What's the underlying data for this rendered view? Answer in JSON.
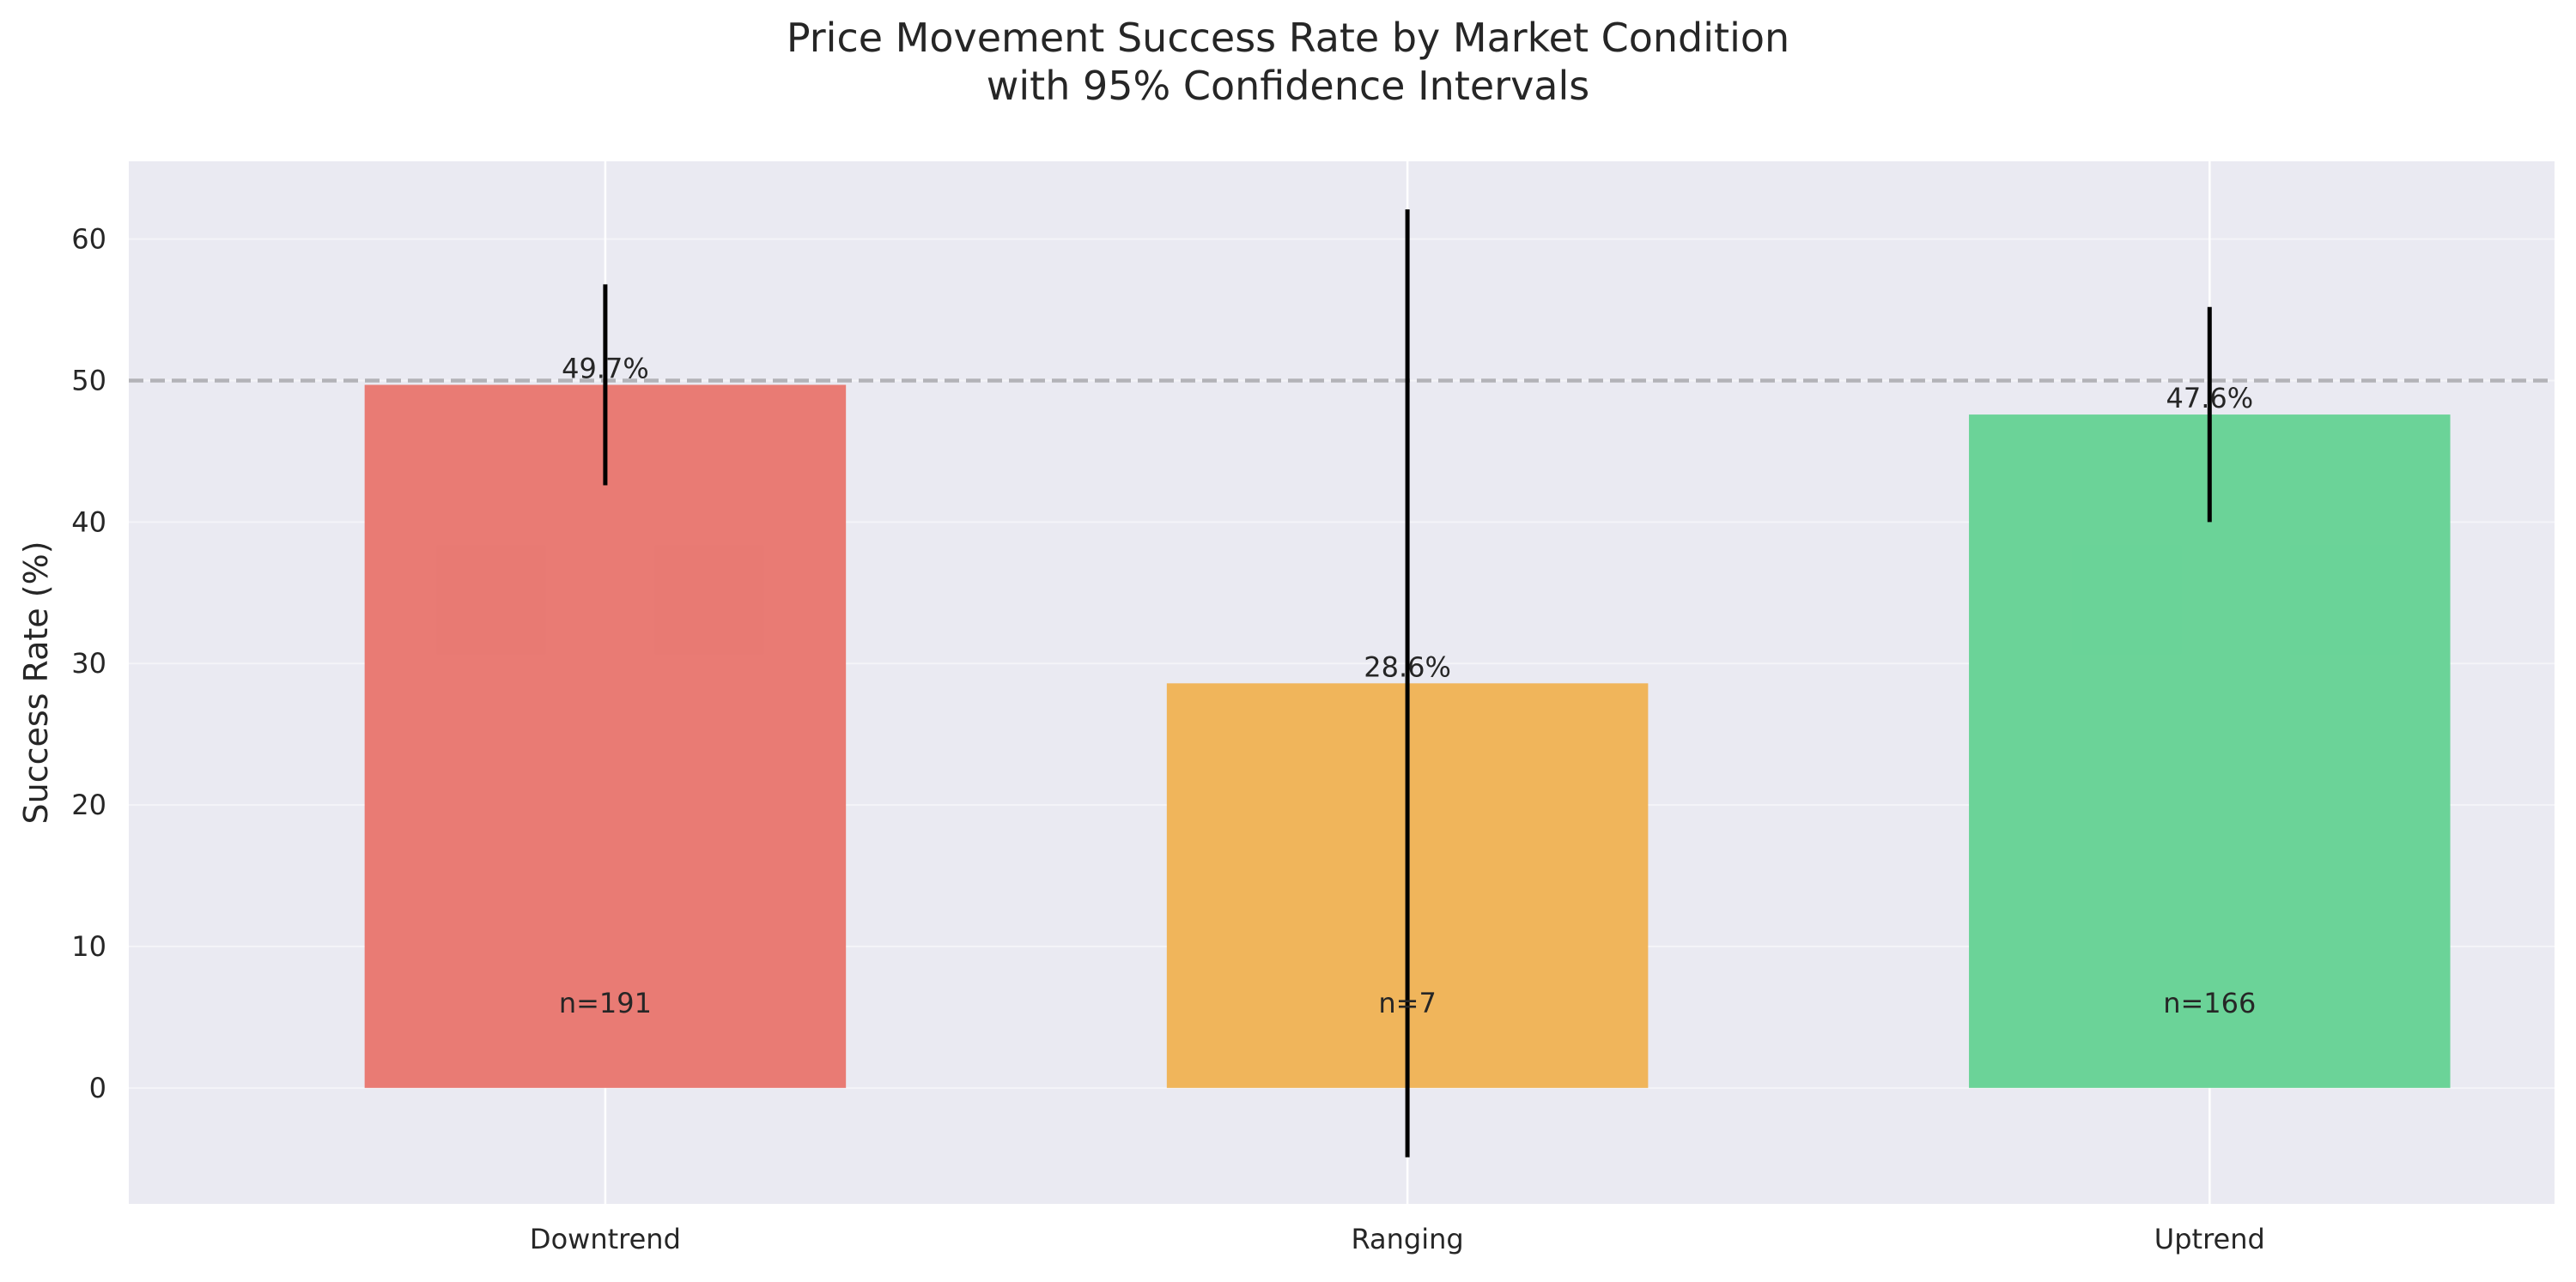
{
  "chart_data": {
    "type": "bar",
    "title_lines": [
      "Price Movement Success Rate by Market Condition",
      "with 95% Confidence Intervals"
    ],
    "xlabel": "",
    "ylabel": "Success Rate (%)",
    "categories": [
      "Downtrend",
      "Ranging",
      "Uptrend"
    ],
    "values": [
      49.7,
      28.6,
      47.6
    ],
    "value_labels": [
      "49.7%",
      "28.6%",
      "47.6%"
    ],
    "ci_low": [
      42.6,
      -4.9,
      40.0
    ],
    "ci_high": [
      56.8,
      62.1,
      55.2
    ],
    "sample_labels": [
      "n=191",
      "n=7",
      "n=166"
    ],
    "sample_label_y": 6,
    "bar_colors": [
      "#e8776f",
      "#f0b356",
      "#66d295"
    ],
    "error_bar_color": "#000000",
    "reference_line": {
      "y": 50,
      "color": "#b3b3b8",
      "style": "dashed"
    },
    "ylim": [
      -8.2,
      65.5
    ],
    "yticks": [
      0,
      10,
      20,
      30,
      40,
      50,
      60
    ],
    "grid": true,
    "background_color": "#eaeaf2",
    "legend": "none"
  }
}
